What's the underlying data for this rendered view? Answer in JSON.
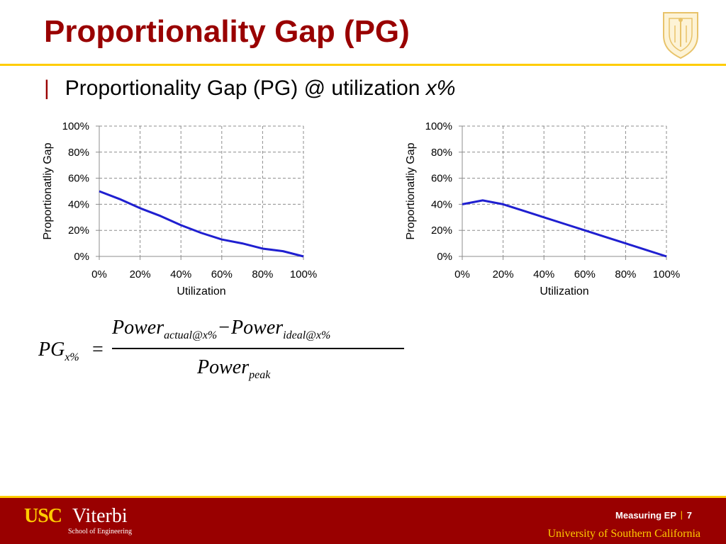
{
  "slide": {
    "title": "Proportionality Gap (PG)",
    "bullet": {
      "mark": "|",
      "text": "Proportionality Gap (PG) @ utilization ",
      "var": "x%"
    }
  },
  "chart_data": [
    {
      "type": "line",
      "title": "",
      "xlabel": "Utilization",
      "ylabel": "Proportionatliy Gap",
      "xlim": [
        0,
        100
      ],
      "ylim": [
        0,
        100
      ],
      "x_ticks": [
        "0%",
        "20%",
        "40%",
        "60%",
        "80%",
        "100%"
      ],
      "y_ticks": [
        "0%",
        "20%",
        "40%",
        "60%",
        "80%",
        "100%"
      ],
      "grid": true,
      "legend": "none",
      "series": [
        {
          "color": "#1f1fd0",
          "x": [
            0,
            10,
            20,
            30,
            40,
            50,
            60,
            70,
            80,
            90,
            100
          ],
          "y": [
            50,
            44,
            37,
            31,
            24,
            18,
            13,
            10,
            6,
            4,
            0
          ]
        }
      ]
    },
    {
      "type": "line",
      "title": "",
      "xlabel": "Utilization",
      "ylabel": "Proportionatliy Gap",
      "xlim": [
        0,
        100
      ],
      "ylim": [
        0,
        100
      ],
      "x_ticks": [
        "0%",
        "20%",
        "40%",
        "60%",
        "80%",
        "100%"
      ],
      "y_ticks": [
        "0%",
        "20%",
        "40%",
        "60%",
        "80%",
        "100%"
      ],
      "grid": true,
      "legend": "none",
      "series": [
        {
          "color": "#1f1fd0",
          "x": [
            0,
            10,
            20,
            30,
            40,
            50,
            60,
            70,
            80,
            90,
            100
          ],
          "y": [
            40,
            43,
            40,
            35,
            30,
            25,
            20,
            15,
            10,
            5,
            0
          ]
        }
      ]
    }
  ],
  "formula": {
    "lhs": "PG",
    "lhs_sub": "x%",
    "eq": "=",
    "num_a": "Power",
    "num_a_sub": "actual@x%",
    "minus": "−",
    "num_b": "Power",
    "num_b_sub": "ideal@x%",
    "den": "Power",
    "den_sub": "peak"
  },
  "footer": {
    "logo_usc": "USC",
    "logo_viterbi": "Viterbi",
    "logo_school": "School of Engineering",
    "section": "Measuring EP",
    "separator": "|",
    "page": "7",
    "university": "University of Southern California"
  },
  "colors": {
    "brand": "#990000",
    "accent": "#ffcc00",
    "series": "#1f1fd0"
  },
  "icons": {
    "seal": "usc-seal-icon"
  }
}
